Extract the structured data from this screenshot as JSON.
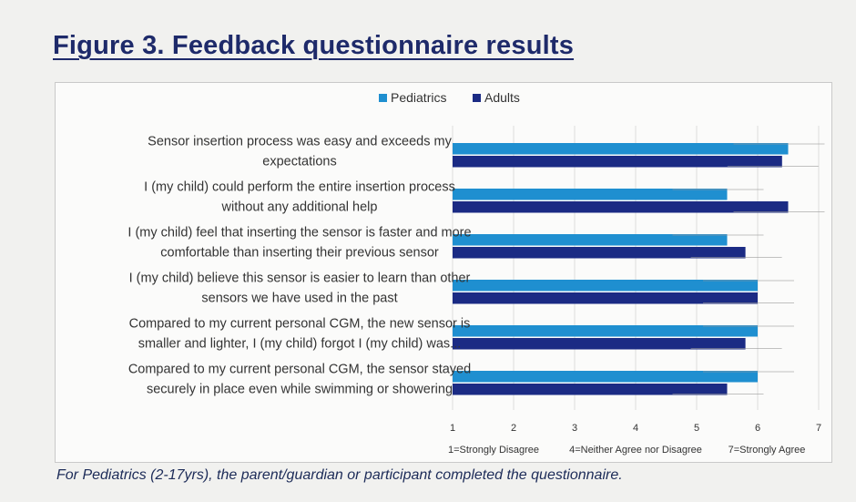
{
  "title": "Figure 3. Feedback questionnaire results",
  "caption": "For Pediatrics (2-17yrs), the parent/guardian or participant completed the questionnaire.",
  "chart_data": {
    "type": "bar",
    "orientation": "horizontal",
    "categories": [
      [
        "Sensor insertion process was easy and exceeds my",
        "expectations"
      ],
      [
        "I (my child) could perform the entire insertion process",
        "without any additional help"
      ],
      [
        "I (my child) feel that inserting the sensor is faster and more",
        "comfortable than inserting their previous sensor"
      ],
      [
        "I (my child) believe this sensor is easier to learn than other",
        "sensors we have used in the past"
      ],
      [
        "Compared to my current personal CGM, the new sensor is",
        "smaller and lighter, I (my child) forgot I (my child) was..."
      ],
      [
        "Compared to my current personal CGM, the sensor stayed",
        "securely in place even while swimming or showering"
      ]
    ],
    "series": [
      {
        "name": "Pediatrics",
        "color": "#1f8fd0",
        "values": [
          6.5,
          5.5,
          5.5,
          6.0,
          6.0,
          6.0
        ]
      },
      {
        "name": "Adults",
        "color": "#1b2b84",
        "values": [
          6.4,
          6.5,
          5.8,
          6.0,
          5.8,
          5.5
        ]
      }
    ],
    "xlim": [
      1,
      7
    ],
    "x_ticks": [
      "1",
      "2",
      "3",
      "4",
      "5",
      "6",
      "7"
    ],
    "scale_labels": [
      "1=Strongly Disagree",
      "4=Neither Agree nor Disagree",
      "7=Strongly Agree"
    ],
    "legend_position": "top",
    "grid": true
  }
}
